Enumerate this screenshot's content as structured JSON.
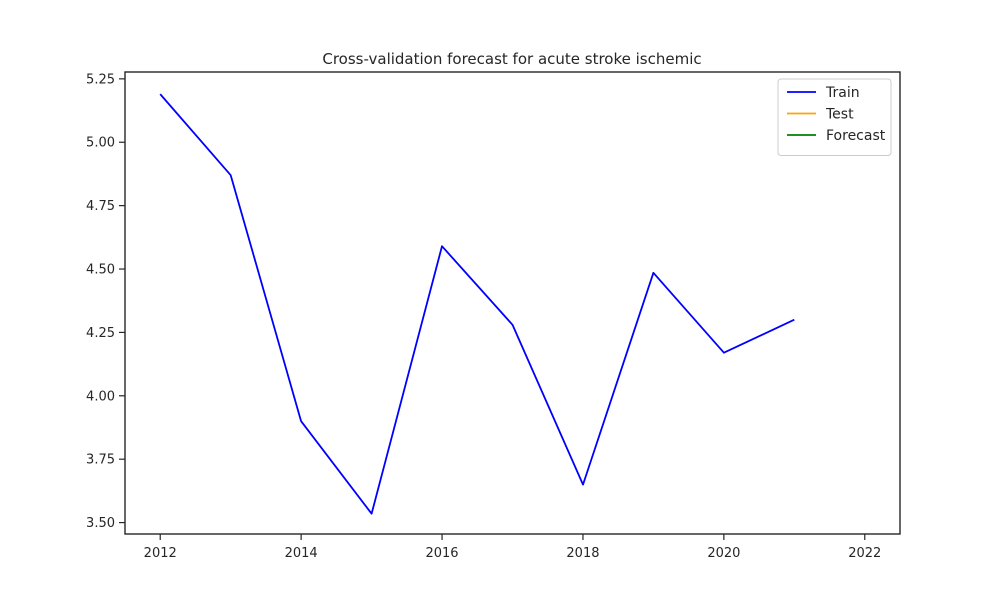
{
  "chart_data": {
    "type": "line",
    "title": "Cross-validation forecast for acute stroke ischemic",
    "xlabel": "",
    "ylabel": "",
    "xlim": [
      2011.5,
      2022.5
    ],
    "ylim": [
      3.455,
      5.277
    ],
    "x_ticks": [
      "2012",
      "2014",
      "2016",
      "2018",
      "2020",
      "2022"
    ],
    "y_ticks": [
      "3.50",
      "3.75",
      "4.00",
      "4.25",
      "4.50",
      "4.75",
      "5.00",
      "5.25"
    ],
    "grid": false,
    "legend_position": "top-right",
    "series": [
      {
        "name": "Train",
        "color": "#0000ff",
        "x": [
          2012,
          2013,
          2014,
          2015,
          2016,
          2017,
          2018,
          2019,
          2020,
          2021
        ],
        "y": [
          5.19,
          4.87,
          3.9,
          3.535,
          4.59,
          4.28,
          3.65,
          4.485,
          4.17,
          4.3
        ]
      },
      {
        "name": "Test",
        "color": "#ffa500",
        "x": [],
        "y": []
      },
      {
        "name": "Forecast",
        "color": "#008000",
        "x": [],
        "y": []
      }
    ]
  }
}
